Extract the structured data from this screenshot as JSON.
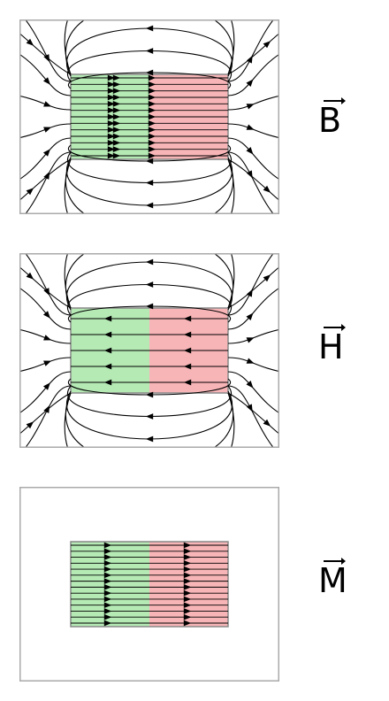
{
  "panels": [
    {
      "id": "B",
      "label": "B",
      "field": "B"
    },
    {
      "id": "H",
      "label": "H",
      "field": "H"
    },
    {
      "id": "M",
      "label": "M",
      "field": "M"
    }
  ],
  "colors": {
    "north_fill": "#f7a8aa",
    "south_fill": "#a8e6a8",
    "frame": "#aaaaaa",
    "magnet_edge": "#888888",
    "line": "#000000"
  }
}
